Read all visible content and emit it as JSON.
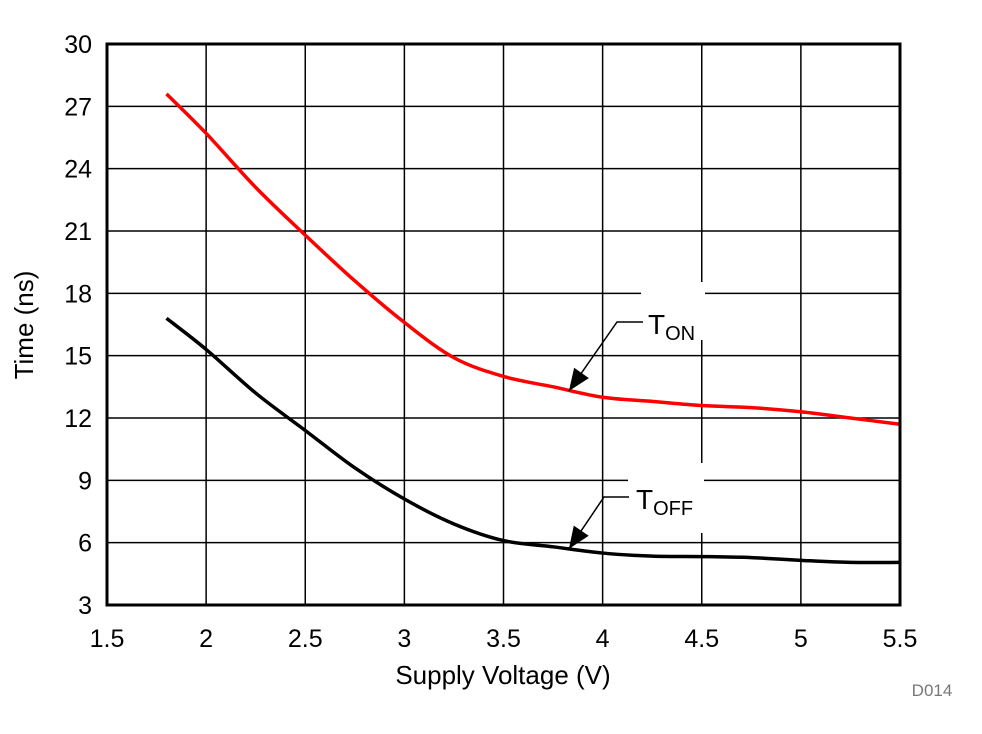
{
  "chart_data": {
    "type": "line",
    "title": "",
    "xlabel": "Supply Voltage (V)",
    "ylabel": "Time (ns)",
    "xlim": [
      1.5,
      5.5
    ],
    "ylim": [
      3,
      30
    ],
    "xticks": [
      "1.5",
      "2",
      "2.5",
      "3",
      "3.5",
      "4",
      "4.5",
      "5",
      "5.5"
    ],
    "yticks": [
      "3",
      "6",
      "9",
      "12",
      "15",
      "18",
      "21",
      "24",
      "27",
      "30"
    ],
    "grid": true,
    "series": [
      {
        "name": "TON",
        "color": "#ff0000",
        "x": [
          1.8,
          2.0,
          2.25,
          2.5,
          2.75,
          3.0,
          3.25,
          3.5,
          3.75,
          4.0,
          4.25,
          4.5,
          4.75,
          5.0,
          5.25,
          5.5
        ],
        "y": [
          27.6,
          25.7,
          23.1,
          20.8,
          18.6,
          16.6,
          14.9,
          14.0,
          13.5,
          13.0,
          12.8,
          12.6,
          12.5,
          12.3,
          12.0,
          11.7
        ]
      },
      {
        "name": "TOFF",
        "color": "#000000",
        "x": [
          1.8,
          2.0,
          2.25,
          2.5,
          2.75,
          3.0,
          3.25,
          3.5,
          3.75,
          4.0,
          4.25,
          4.5,
          4.75,
          5.0,
          5.25,
          5.5
        ],
        "y": [
          16.8,
          15.3,
          13.2,
          11.4,
          9.6,
          8.1,
          6.9,
          6.1,
          5.8,
          5.5,
          5.35,
          5.33,
          5.28,
          5.15,
          5.05,
          5.05
        ]
      }
    ],
    "annotations": [
      {
        "main": "T",
        "sub": "ON",
        "points_to": [
          3.83,
          13.3
        ]
      },
      {
        "main": "T",
        "sub": "OFF",
        "points_to": [
          3.83,
          5.7
        ]
      }
    ],
    "figure_id": "D014"
  }
}
